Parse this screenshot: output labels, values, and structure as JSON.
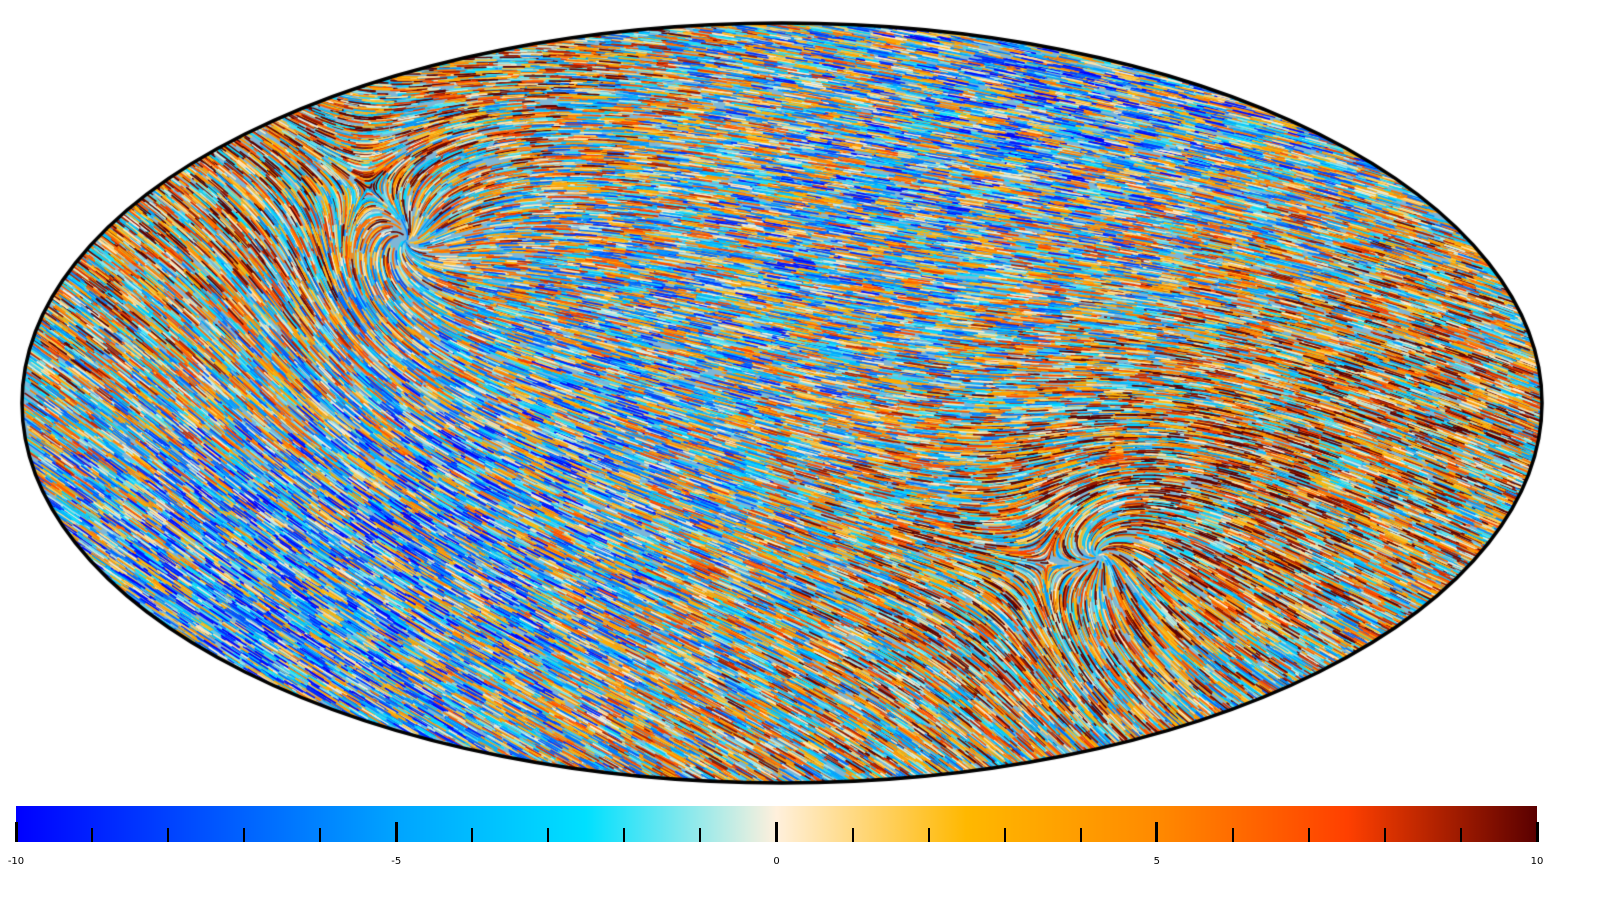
{
  "chart_data": {
    "type": "heatmap",
    "projection": "mollweide",
    "title": "",
    "colorbar": {
      "min": -10,
      "max": 10,
      "tick_labels": [
        "-10",
        "-5",
        "0",
        "5",
        "10"
      ],
      "major_ticks": [
        -10,
        -5,
        0,
        5,
        10
      ],
      "minor_step": 1,
      "placement": "bottom",
      "colormap": [
        {
          "v": -10,
          "color": "#0000ff"
        },
        {
          "v": -5,
          "color": "#00a4ff"
        },
        {
          "v": -2.5,
          "color": "#00e0ff"
        },
        {
          "v": 0,
          "color": "#fff0dc"
        },
        {
          "v": 2.5,
          "color": "#ffb800"
        },
        {
          "v": 5,
          "color": "#ff8a00"
        },
        {
          "v": 7.5,
          "color": "#ff4000"
        },
        {
          "v": 10,
          "color": "#5a0000"
        }
      ]
    },
    "singular_points_lonlat": [
      [
        -90,
        40
      ],
      [
        90,
        -40
      ]
    ]
  }
}
